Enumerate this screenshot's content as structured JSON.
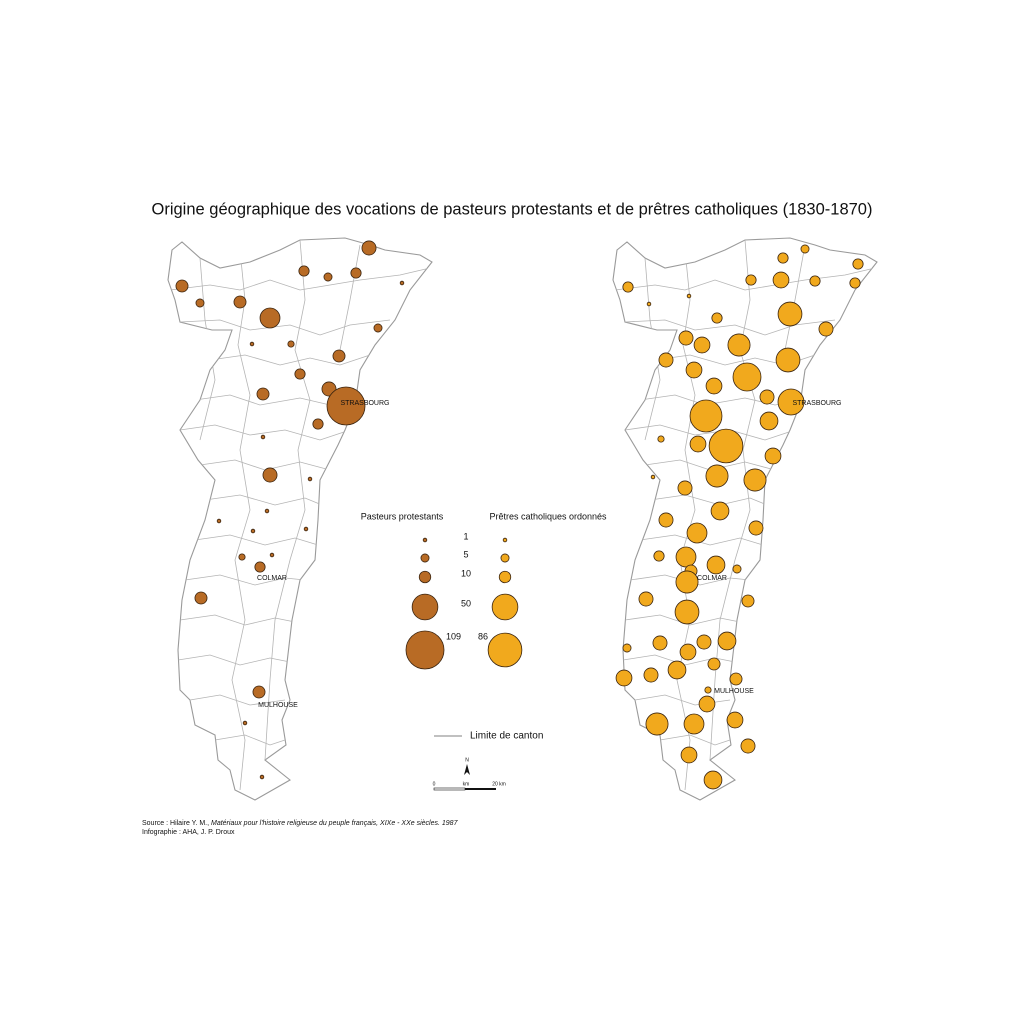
{
  "title": "Origine géographique des vocations de pasteurs protestants et de prêtres catholiques (1830-1870)",
  "cities": [
    "STRASBOURG",
    "COLMAR",
    "MULHOUSE"
  ],
  "colors": {
    "protestant": "#b86b25",
    "catholic": "#f1a91d"
  },
  "protestant_circles": [
    15,
    11,
    8,
    5,
    8,
    1,
    5,
    11,
    30,
    5,
    1,
    3,
    11,
    8,
    15,
    109,
    11,
    8,
    1,
    15,
    1,
    1,
    1,
    1,
    1,
    3,
    8,
    1,
    11,
    11,
    1,
    1
  ],
  "catholic_circles": [
    5,
    8,
    8,
    8,
    19,
    8,
    8,
    8,
    1,
    1,
    8,
    43,
    15,
    15,
    19,
    37,
    43,
    15,
    19,
    59,
    19,
    15,
    51,
    77,
    24,
    86,
    3,
    19,
    19,
    37,
    37,
    15,
    1,
    24,
    15,
    15,
    30,
    8,
    30,
    24,
    5,
    11,
    37,
    15,
    11,
    43,
    24,
    15,
    15,
    5,
    19,
    24,
    11,
    15,
    19,
    11,
    3,
    19,
    37,
    30,
    19,
    15,
    19,
    24
  ],
  "legend": {
    "protestant": {
      "title": "Pasteurs protestants",
      "values": [
        1,
        5,
        10,
        50,
        109
      ]
    },
    "catholic": {
      "title": "Prêtres catholiques ordonnés",
      "values": [
        1,
        5,
        10,
        50,
        86
      ]
    },
    "canton": "Limite de canton"
  },
  "scale": {
    "north": "N",
    "zero": "0",
    "unit": "km",
    "end": "20 km"
  },
  "source": {
    "prefix": "Source : Hilaire Y. M., ",
    "work": "Matériaux pour l'histoire religieuse du peuple français, XIXe - XXe siècles. 1987",
    "credit": "Infographie : AHA, J. P. Droux"
  }
}
